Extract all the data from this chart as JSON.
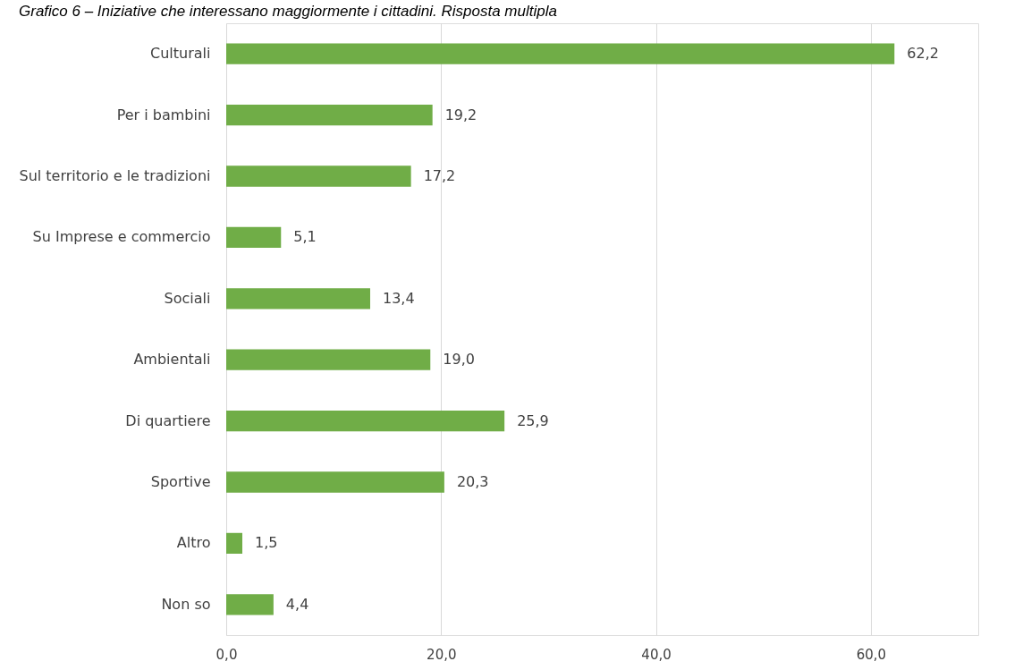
{
  "chart_data": {
    "type": "bar",
    "orientation": "horizontal",
    "title": "Grafico 6 – Iniziative che interessano maggiormente i cittadini. Risposta multipla",
    "categories": [
      "Culturali",
      "Per i bambini",
      "Sul territorio e le tradizioni",
      "Su Imprese e commercio",
      "Sociali",
      "Ambientali",
      "Di quartiere",
      "Sportive",
      "Altro",
      "Non so"
    ],
    "values": [
      62.2,
      19.2,
      17.2,
      5.1,
      13.4,
      19.0,
      25.9,
      20.3,
      1.5,
      4.4
    ],
    "value_labels": [
      "62,2",
      "19,2",
      "17,2",
      "5,1",
      "13,4",
      "19,0",
      "25,9",
      "20,3",
      "1,5",
      "4,4"
    ],
    "color": "#70ad47",
    "xlim": [
      0,
      70
    ],
    "xticks": [
      {
        "value": 0,
        "label": "0,0"
      },
      {
        "value": 20,
        "label": "20,0"
      },
      {
        "value": 40,
        "label": "40,0"
      },
      {
        "value": 60,
        "label": "60,0"
      }
    ],
    "grid": "x"
  }
}
